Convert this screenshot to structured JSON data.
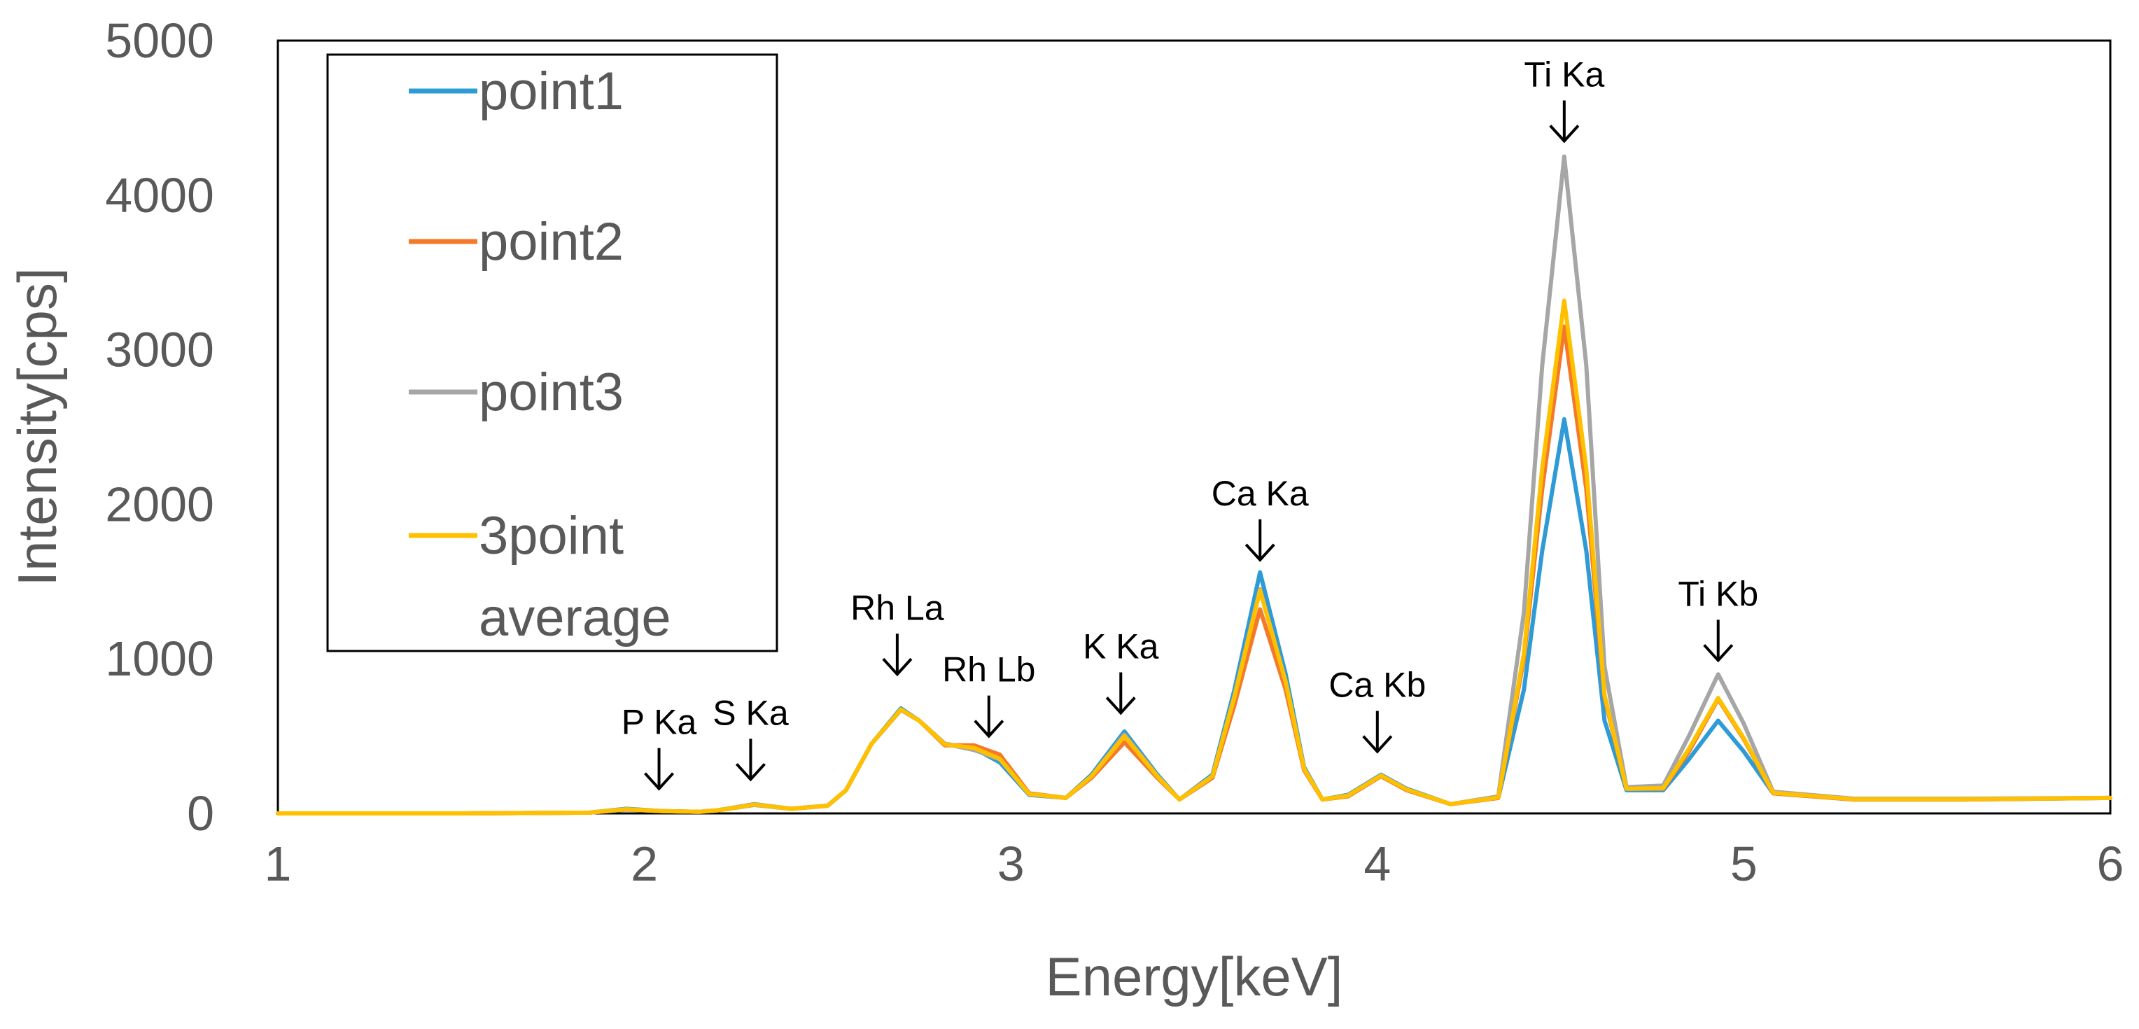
{
  "chart_data": {
    "type": "line",
    "xlabel": "Energy[keV]",
    "ylabel": "Intensity[cps]",
    "xlim": [
      1,
      6
    ],
    "ylim": [
      0,
      5000
    ],
    "grid": false,
    "legend_position": "top-left",
    "x_ticks": [
      {
        "value": 1,
        "label": "1"
      },
      {
        "value": 2,
        "label": "2"
      },
      {
        "value": 3,
        "label": "3"
      },
      {
        "value": 4,
        "label": "4"
      },
      {
        "value": 5,
        "label": "5"
      },
      {
        "value": 6,
        "label": "6"
      }
    ],
    "y_ticks": [
      {
        "value": 0,
        "label": "0"
      },
      {
        "value": 1000,
        "label": "1000"
      },
      {
        "value": 2000,
        "label": "2000"
      },
      {
        "value": 3000,
        "label": "3000"
      },
      {
        "value": 4000,
        "label": "4000"
      },
      {
        "value": 5000,
        "label": "5000"
      }
    ],
    "x": [
      1.0,
      1.5,
      1.85,
      1.95,
      2.05,
      2.15,
      2.2,
      2.3,
      2.4,
      2.5,
      2.55,
      2.62,
      2.7,
      2.75,
      2.82,
      2.9,
      2.97,
      3.05,
      3.15,
      3.22,
      3.31,
      3.4,
      3.46,
      3.55,
      3.61,
      3.68,
      3.75,
      3.8,
      3.85,
      3.92,
      4.01,
      4.08,
      4.2,
      4.33,
      4.4,
      4.45,
      4.51,
      4.57,
      4.62,
      4.68,
      4.78,
      4.85,
      4.93,
      5.0,
      5.08,
      5.3,
      5.6,
      6.0
    ],
    "series": [
      {
        "name": "point1",
        "color": "#2E9BD6",
        "values": [
          0,
          0,
          5,
          30,
          15,
          10,
          20,
          60,
          30,
          50,
          150,
          450,
          680,
          600,
          450,
          420,
          330,
          120,
          100,
          250,
          530,
          250,
          90,
          250,
          800,
          1560,
          900,
          300,
          90,
          120,
          250,
          160,
          60,
          100,
          800,
          1700,
          2550,
          1700,
          600,
          150,
          150,
          350,
          600,
          400,
          130,
          90,
          90,
          100
        ]
      },
      {
        "name": "point2",
        "color": "#F4792B",
        "values": [
          0,
          0,
          5,
          25,
          15,
          10,
          20,
          55,
          30,
          50,
          150,
          450,
          670,
          600,
          440,
          440,
          380,
          130,
          100,
          230,
          460,
          230,
          90,
          230,
          700,
          1320,
          800,
          280,
          90,
          110,
          240,
          150,
          60,
          100,
          1000,
          2100,
          3150,
          2100,
          750,
          160,
          160,
          400,
          740,
          480,
          130,
          90,
          90,
          100
        ]
      },
      {
        "name": "point3",
        "color": "#A6A6A6",
        "values": [
          0,
          0,
          5,
          25,
          15,
          10,
          20,
          55,
          30,
          50,
          150,
          450,
          670,
          600,
          450,
          410,
          350,
          125,
          100,
          240,
          510,
          240,
          90,
          240,
          760,
          1450,
          850,
          290,
          90,
          115,
          245,
          155,
          60,
          110,
          1300,
          2900,
          4250,
          2900,
          950,
          170,
          180,
          500,
          900,
          580,
          140,
          95,
          95,
          100
        ]
      },
      {
        "name": "3point average",
        "color": "#FFC000",
        "values": [
          0,
          0,
          5,
          27,
          15,
          10,
          20,
          57,
          30,
          50,
          150,
          450,
          673,
          600,
          447,
          423,
          353,
          125,
          100,
          240,
          500,
          240,
          90,
          240,
          753,
          1443,
          850,
          290,
          90,
          115,
          245,
          155,
          60,
          103,
          1033,
          2233,
          3317,
          2233,
          767,
          160,
          163,
          417,
          747,
          487,
          133,
          92,
          92,
          100
        ]
      }
    ],
    "annotations": [
      {
        "text": "P Ka",
        "x": 2.04,
        "y": 160
      },
      {
        "text": "S Ka",
        "x": 2.29,
        "y": 220
      },
      {
        "text": "Rh La",
        "x": 2.69,
        "y": 900
      },
      {
        "text": "Rh Lb",
        "x": 2.94,
        "y": 500
      },
      {
        "text": "K Ka",
        "x": 3.3,
        "y": 650
      },
      {
        "text": "Ca Ka",
        "x": 3.68,
        "y": 1640
      },
      {
        "text": "Ca Kb",
        "x": 4.0,
        "y": 400
      },
      {
        "text": "Ti Ka",
        "x": 4.51,
        "y": 4350
      },
      {
        "text": "Ti Kb",
        "x": 4.93,
        "y": 990
      }
    ]
  }
}
